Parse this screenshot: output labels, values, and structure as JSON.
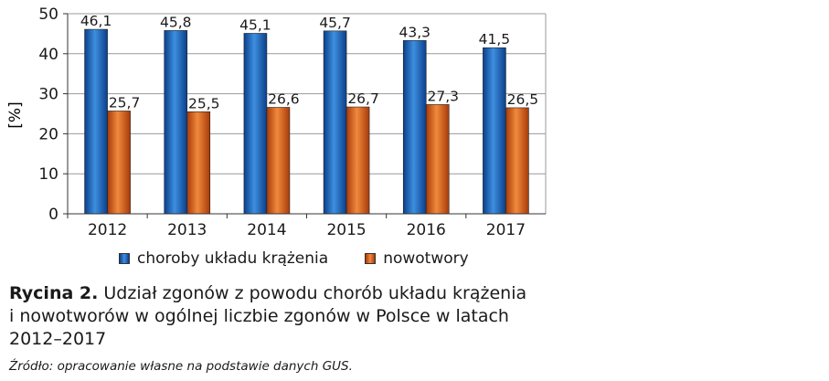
{
  "chart_data": {
    "type": "bar",
    "categories": [
      "2012",
      "2013",
      "2014",
      "2015",
      "2016",
      "2017"
    ],
    "series": [
      {
        "name": "choroby układu krążenia",
        "values": [
          46.1,
          45.8,
          45.1,
          45.7,
          43.3,
          41.5
        ],
        "labels": [
          "46,1",
          "45,8",
          "45,1",
          "45,7",
          "43,3",
          "41,5"
        ],
        "color": "#1f6fc0"
      },
      {
        "name": "nowotwory",
        "values": [
          25.7,
          25.5,
          26.6,
          26.7,
          27.3,
          26.5
        ],
        "labels": [
          "25,7",
          "25,5",
          "26,6",
          "26,7",
          "27,3",
          "26,5"
        ],
        "color": "#e0621a"
      }
    ],
    "ylabel": "[%]",
    "ylim": [
      0,
      50
    ],
    "yticks": [
      0,
      10,
      20,
      30,
      40,
      50
    ],
    "grid": true,
    "legend_position": "bottom"
  },
  "caption": {
    "prefix": "Rycina 2.",
    "line1": " Udział zgonów z powodu chorób układu krążenia",
    "line2": "i nowotworów w ogólnej liczbie zgonów w Polsce w latach",
    "line3": "2012–2017"
  },
  "source": "Źródło: opracowanie własne na podstawie danych GUS."
}
